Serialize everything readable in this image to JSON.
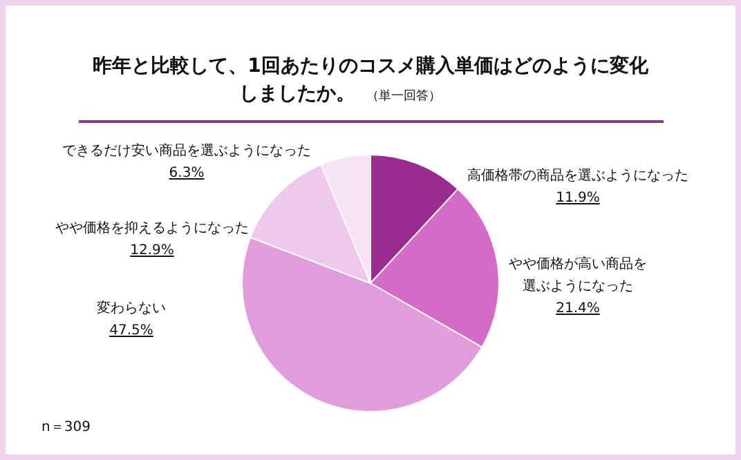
{
  "chart_data": {
    "type": "pie",
    "title": "昨年と比較して、1回あたりのコスメ購入単価はどのように変化しましたか。",
    "subtitle": "（単一回答）",
    "categories": [
      "高価格帯の商品を選ぶようになった",
      "やや価格が高い商品を選ぶようになった",
      "変わらない",
      "やや価格を抑えるようになった",
      "できるだけ安い商品を選ぶようになった"
    ],
    "values": [
      11.9,
      21.4,
      47.5,
      12.9,
      6.3
    ],
    "value_labels": [
      "11.9%",
      "21.4%",
      "47.5%",
      "12.9%",
      "6.3%"
    ],
    "colors": [
      "#9b2a91",
      "#d46bc7",
      "#e09cdb",
      "#efc8ec",
      "#f8e3f6"
    ],
    "annotations": [
      "n＝309"
    ]
  }
}
